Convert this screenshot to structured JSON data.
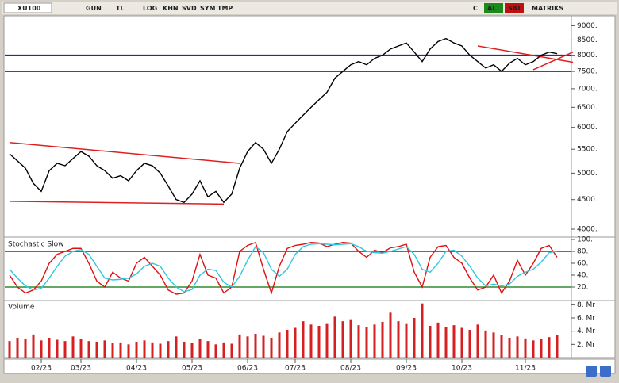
{
  "toolbar": {
    "symbol": "XU100",
    "buttons": [
      "GUN",
      "TL",
      "LOG",
      "KHN",
      "SVD",
      "SYM",
      "TMP"
    ],
    "right": [
      "C",
      "AL",
      "SAT"
    ],
    "brand": "MATRIKS"
  },
  "chart_data": [
    {
      "type": "line",
      "color": "#000000",
      "log_scale": true,
      "categories": [
        null,
        null,
        null,
        null,
        "02/23",
        null,
        null,
        null,
        null,
        "03/23",
        null,
        null,
        null,
        null,
        null,
        null,
        "04/23",
        null,
        null,
        null,
        null,
        null,
        null,
        "05/23",
        null,
        null,
        null,
        null,
        null,
        null,
        "06/23",
        null,
        null,
        null,
        null,
        null,
        "07/23",
        null,
        null,
        null,
        null,
        null,
        null,
        "08/23",
        null,
        null,
        null,
        null,
        null,
        null,
        "09/23",
        null,
        null,
        null,
        null,
        null,
        null,
        "10/23",
        null,
        null,
        null,
        null,
        null,
        null,
        null,
        "11/23",
        null,
        null,
        null,
        null
      ],
      "values": [
        5400,
        5250,
        5100,
        4800,
        4650,
        5050,
        5200,
        5150,
        5300,
        5450,
        5350,
        5150,
        5050,
        4900,
        4950,
        4850,
        5050,
        5200,
        5150,
        5000,
        4750,
        4500,
        4450,
        4600,
        4850,
        4550,
        4650,
        4450,
        4600,
        5100,
        5450,
        5650,
        5500,
        5200,
        5500,
        5900,
        6100,
        6300,
        6500,
        6700,
        6900,
        7300,
        7500,
        7700,
        7800,
        7700,
        7900,
        8000,
        8200,
        8300,
        8400,
        8100,
        7800,
        8200,
        8450,
        8550,
        8400,
        8300,
        8000,
        7800,
        7600,
        7700,
        7500,
        7750,
        7900,
        7700,
        7800,
        8000,
        8100,
        8050
      ],
      "ylim": [
        3900,
        9300
      ],
      "yticks": [
        {
          "value": 4000,
          "label": "4000."
        },
        {
          "value": 4500,
          "label": "4500."
        },
        {
          "value": 5000,
          "label": "5000."
        },
        {
          "value": 5500,
          "label": "5500."
        },
        {
          "value": 6000,
          "label": "6000."
        },
        {
          "value": 6500,
          "label": "6500."
        },
        {
          "value": 7000,
          "label": "7000."
        },
        {
          "value": 7500,
          "label": "7500."
        },
        {
          "value": 8000,
          "label": "8000."
        },
        {
          "value": 8500,
          "label": "8500."
        },
        {
          "value": 9000,
          "label": "9000."
        }
      ],
      "hlines": [
        {
          "value": 8000,
          "color": "#1c2ca8"
        },
        {
          "value": 7500,
          "color": "#1c2ca8"
        }
      ],
      "trendlines": [
        {
          "x": [
            0,
            29
          ],
          "y": [
            5650,
            5200
          ],
          "color": "#e02020"
        },
        {
          "x": [
            0,
            27
          ],
          "y": [
            4470,
            4420
          ],
          "color": "#e02020"
        },
        {
          "x": [
            59,
            71
          ],
          "y": [
            8300,
            7780
          ],
          "color": "#e02020"
        },
        {
          "x": [
            66,
            71
          ],
          "y": [
            7550,
            8100
          ],
          "color": "#e02020"
        }
      ]
    },
    {
      "type": "line",
      "title": "Stochastic Slow",
      "series": [
        {
          "color": "#e01010",
          "values": [
            40,
            20,
            10,
            15,
            30,
            60,
            75,
            80,
            85,
            85,
            60,
            30,
            20,
            45,
            35,
            30,
            60,
            70,
            55,
            40,
            15,
            8,
            10,
            30,
            75,
            40,
            35,
            10,
            20,
            80,
            90,
            95,
            50,
            10,
            55,
            85,
            90,
            92,
            95,
            94,
            88,
            92,
            95,
            94,
            80,
            70,
            82,
            78,
            86,
            88,
            92,
            45,
            20,
            70,
            88,
            90,
            70,
            60,
            35,
            15,
            20,
            40,
            10,
            30,
            65,
            40,
            60,
            85,
            90,
            70
          ]
        },
        {
          "color": "#2ec8e0",
          "values": [
            50,
            35,
            22,
            15,
            18,
            35,
            55,
            72,
            80,
            83,
            75,
            55,
            35,
            32,
            33,
            35,
            42,
            55,
            60,
            55,
            35,
            20,
            12,
            16,
            40,
            50,
            48,
            28,
            20,
            38,
            65,
            88,
            78,
            50,
            38,
            50,
            75,
            88,
            92,
            93,
            92,
            91,
            92,
            93,
            88,
            80,
            78,
            77,
            80,
            84,
            88,
            75,
            50,
            45,
            60,
            80,
            82,
            72,
            55,
            35,
            22,
            25,
            22,
            25,
            38,
            45,
            50,
            62,
            78,
            80
          ]
        }
      ],
      "ylim": [
        0,
        100
      ],
      "yticks": [
        {
          "value": 20,
          "label": "20."
        },
        {
          "value": 40,
          "label": "40."
        },
        {
          "value": 60,
          "label": "60."
        },
        {
          "value": 80,
          "label": "80."
        },
        {
          "value": 100,
          "label": "100."
        }
      ],
      "hlines": [
        {
          "value": 80,
          "color": "#8b1a1a"
        },
        {
          "value": 20,
          "color": "#2e8b2e"
        }
      ]
    },
    {
      "type": "bar",
      "title": "Volume",
      "color": "#d42020",
      "values": [
        2.5,
        3,
        2.8,
        3.5,
        2.6,
        3,
        2.7,
        2.5,
        3.2,
        2.8,
        2.5,
        2.4,
        2.6,
        2.2,
        2.3,
        2,
        2.4,
        2.6,
        2.3,
        2.1,
        2.5,
        3.2,
        2.4,
        2.2,
        2.8,
        2.5,
        2,
        2.3,
        2.1,
        3.5,
        3.2,
        3.6,
        3.3,
        3,
        3.8,
        4.2,
        4.5,
        5.5,
        5,
        4.8,
        5.2,
        6.2,
        5.5,
        5.8,
        4.9,
        4.6,
        5,
        5.4,
        6.8,
        5.5,
        5.2,
        6,
        8.2,
        4.8,
        5.3,
        4.6,
        4.9,
        4.5,
        4.2,
        5,
        4.1,
        3.8,
        3.4,
        3,
        3.2,
        2.9,
        2.6,
        2.8,
        3.1,
        3.4
      ],
      "ylim": [
        0,
        8.4
      ],
      "yticks": [
        {
          "value": 2,
          "label": "2. Mr"
        },
        {
          "value": 4,
          "label": "4. Mr"
        },
        {
          "value": 6,
          "label": "6. Mr"
        },
        {
          "value": 8,
          "label": "8. Mr"
        }
      ]
    }
  ]
}
